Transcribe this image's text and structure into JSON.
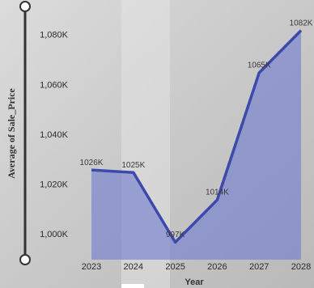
{
  "chart_data": {
    "type": "area",
    "x_label": "Year",
    "y_label": "Average of Sale_Price",
    "categories": [
      "2023",
      "2024",
      "2025",
      "2026",
      "2027",
      "2028"
    ],
    "values": [
      1026,
      1025,
      997,
      1014,
      1065,
      1082
    ],
    "value_labels": [
      "1026K",
      "1025K",
      "997K",
      "1014K",
      "1065K",
      "1082K"
    ],
    "color": "#3d4aab",
    "ylim": [
      990,
      1090
    ],
    "yticks": [
      {
        "value": 1000,
        "label": "1,000K"
      },
      {
        "value": 1020,
        "label": "1,020K"
      },
      {
        "value": 1040,
        "label": "1,040K"
      },
      {
        "value": 1060,
        "label": "1,060K"
      },
      {
        "value": 1080,
        "label": "1,080K"
      }
    ],
    "grid": false
  }
}
